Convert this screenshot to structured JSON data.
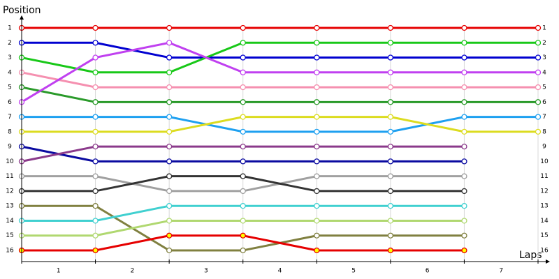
{
  "chart_data": {
    "type": "lap",
    "title": "Position",
    "x_label": "Laps",
    "lap_labels": [
      "1",
      "2",
      "3",
      "4",
      "5",
      "6",
      "7"
    ],
    "x": [
      0,
      1,
      2,
      3,
      4,
      5,
      6,
      7
    ],
    "xlim": [
      0,
      7
    ],
    "ylim": [
      1,
      16
    ],
    "y_inverted": true,
    "yticks": [
      1,
      2,
      3,
      4,
      5,
      6,
      7,
      8,
      9,
      10,
      11,
      12,
      13,
      14,
      15,
      16
    ],
    "grid": true,
    "series": [
      {
        "color": "#e60000",
        "marker_fill": "#ffffff",
        "values": [
          1,
          1,
          1,
          1,
          1,
          1,
          1,
          1
        ]
      },
      {
        "color": "#0000d0",
        "marker_fill": "#ffffff",
        "values": [
          2,
          2,
          3,
          3,
          3,
          3,
          3,
          3
        ]
      },
      {
        "color": "#18c818",
        "marker_fill": "#ffffff",
        "values": [
          3,
          4,
          4,
          2,
          2,
          2,
          2,
          2
        ]
      },
      {
        "color": "#f590b0",
        "marker_fill": "#ffffff",
        "values": [
          4,
          5,
          5,
          5,
          5,
          5,
          5,
          5
        ]
      },
      {
        "color": "#2a9a2a",
        "marker_fill": "#ffffff",
        "values": [
          5,
          6,
          6,
          6,
          6,
          6,
          6,
          6
        ]
      },
      {
        "color": "#c040f0",
        "marker_fill": "#ffffff",
        "values": [
          6,
          3,
          2,
          4,
          4,
          4,
          4,
          4
        ]
      },
      {
        "color": "#1ea0f0",
        "marker_fill": "#ffffff",
        "values": [
          7,
          7,
          7,
          8,
          8,
          8,
          7,
          7
        ]
      },
      {
        "color": "#dcdc20",
        "marker_fill": "#ffffff",
        "values": [
          8,
          8,
          8,
          7,
          7,
          7,
          8,
          8
        ]
      },
      {
        "color": "#0a0aa0",
        "marker_fill": "#ffffff",
        "values": [
          9,
          10,
          10,
          10,
          10,
          10,
          10,
          null
        ]
      },
      {
        "color": "#8b3a8b",
        "marker_fill": "#ffffff",
        "values": [
          10,
          9,
          9,
          9,
          9,
          9,
          9,
          null
        ]
      },
      {
        "color": "#a0a0a0",
        "marker_fill": "#ffffff",
        "values": [
          11,
          11,
          12,
          12,
          11,
          11,
          11,
          null
        ]
      },
      {
        "color": "#333333",
        "marker_fill": "#ffffff",
        "values": [
          12,
          12,
          11,
          11,
          12,
          12,
          12,
          null
        ]
      },
      {
        "color": "#808040",
        "marker_fill": "#ffffff",
        "values": [
          13,
          13,
          16,
          16,
          15,
          15,
          15,
          null
        ]
      },
      {
        "color": "#40d0d0",
        "marker_fill": "#ffffff",
        "values": [
          14,
          14,
          13,
          13,
          13,
          13,
          13,
          null
        ]
      },
      {
        "color": "#b0d870",
        "marker_fill": "#ffffff",
        "values": [
          15,
          15,
          14,
          14,
          14,
          14,
          14,
          null
        ]
      },
      {
        "color": "#e60000",
        "marker_fill": "#ffff00",
        "values": [
          16,
          16,
          15,
          15,
          16,
          16,
          16,
          null
        ]
      }
    ]
  }
}
